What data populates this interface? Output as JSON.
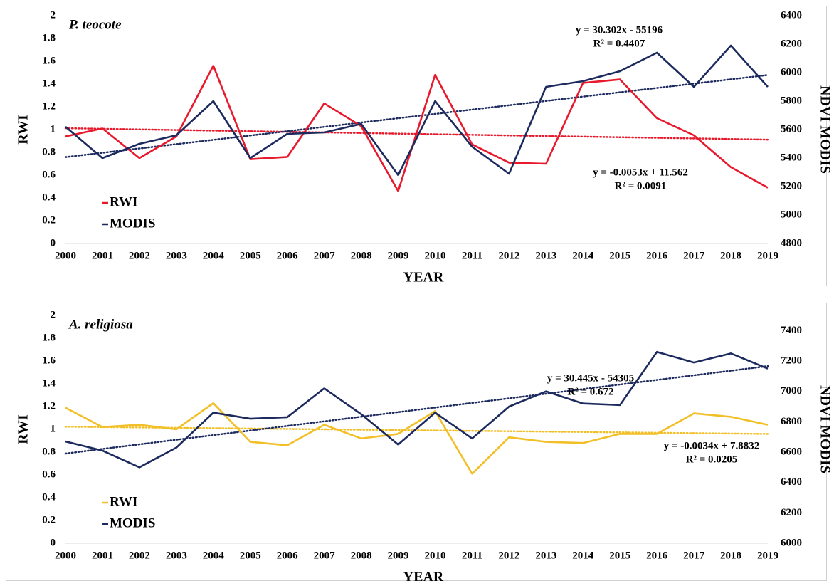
{
  "chart_data": [
    {
      "type": "line",
      "title": "P. teocote",
      "y_label": "RWI",
      "y2_label": "NDVI MODIS",
      "x_label": "YEAR",
      "categories": [
        "2000",
        "2001",
        "2002",
        "2003",
        "2004",
        "2005",
        "2006",
        "2007",
        "2008",
        "2009",
        "2010",
        "2011",
        "2012",
        "2013",
        "2014",
        "2015",
        "2016",
        "2017",
        "2018",
        "2019"
      ],
      "series": [
        {
          "name": "RWI",
          "color": "#e8192c",
          "trendline": true,
          "values": [
            0.94,
            1.01,
            0.75,
            0.94,
            1.56,
            0.74,
            0.76,
            1.23,
            1.03,
            0.46,
            1.48,
            0.87,
            0.71,
            0.7,
            1.41,
            1.44,
            1.1,
            0.95,
            0.67,
            0.49
          ]
        },
        {
          "name": "MODIS",
          "color": "#1c2a5e",
          "axis": "y2",
          "trendline": true,
          "values": [
            5620,
            5400,
            5500,
            5560,
            5800,
            5400,
            5570,
            5580,
            5640,
            5280,
            5800,
            5480,
            5290,
            5900,
            5940,
            6010,
            6140,
            5900,
            6190,
            5900
          ]
        }
      ],
      "ylim": [
        0,
        2
      ],
      "yticks": [
        0,
        0.2,
        0.4,
        0.6,
        0.8,
        1,
        1.2,
        1.4,
        1.6,
        1.8,
        2
      ],
      "y2lim": [
        4800,
        6400
      ],
      "y2ticks": [
        4800,
        5000,
        5200,
        5400,
        5600,
        5800,
        6000,
        6200,
        6400
      ],
      "annotations": [
        "y = 30.302x - 55196",
        "R² = 0.4407",
        "y = -0.0053x + 11.562",
        "R² = 0.0091"
      ],
      "legend": "lower left"
    },
    {
      "type": "line",
      "title": "A. religiosa",
      "y_label": "RWI",
      "y2_label": "NDVI MODIS",
      "x_label": "YEAR",
      "categories": [
        "2000",
        "2001",
        "2002",
        "2003",
        "2004",
        "2005",
        "2006",
        "2007",
        "2008",
        "2009",
        "2010",
        "2011",
        "2012",
        "2013",
        "2014",
        "2015",
        "2016",
        "2017",
        "2018",
        "2019"
      ],
      "series": [
        {
          "name": "RWI",
          "color": "#f2bf26",
          "trendline": true,
          "values": [
            1.19,
            1.02,
            1.04,
            1.0,
            1.23,
            0.89,
            0.86,
            1.04,
            0.92,
            0.96,
            1.16,
            0.61,
            0.93,
            0.89,
            0.88,
            0.96,
            0.96,
            1.14,
            1.11,
            1.04
          ]
        },
        {
          "name": "MODIS",
          "color": "#1c2a5e",
          "axis": "y2",
          "trendline": true,
          "values": [
            6670,
            6610,
            6500,
            6630,
            6860,
            6820,
            6830,
            7020,
            6850,
            6650,
            6860,
            6690,
            6900,
            7000,
            6920,
            6910,
            7260,
            7190,
            7250,
            7150
          ]
        }
      ],
      "ylim": [
        0,
        2
      ],
      "yticks": [
        0,
        0.2,
        0.4,
        0.6,
        0.8,
        1,
        1.2,
        1.4,
        1.6,
        1.8,
        2
      ],
      "y2lim": [
        6000,
        7500
      ],
      "y2ticks": [
        6000,
        6200,
        6400,
        6600,
        6800,
        7000,
        7200,
        7400
      ],
      "annotations": [
        "y = 30.445x - 54305",
        "R² = 0.672",
        "y = -0.0034x + 7.8832",
        "R² = 0.0205"
      ],
      "legend": "lower left"
    }
  ]
}
